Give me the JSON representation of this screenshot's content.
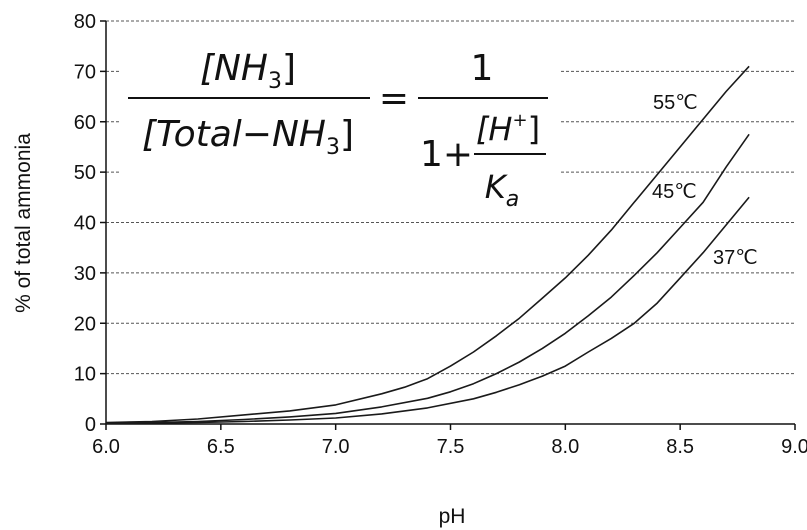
{
  "chart_data": {
    "type": "line",
    "xlabel": "pH",
    "ylabel": "% of total ammonia",
    "xlim": [
      6.0,
      9.0
    ],
    "ylim": [
      0,
      80
    ],
    "x_ticks": [
      "6.0",
      "6.5",
      "7.0",
      "7.5",
      "8.0",
      "8.5",
      "9.0"
    ],
    "y_ticks": [
      "0",
      "10",
      "20",
      "30",
      "40",
      "50",
      "60",
      "70",
      "80"
    ],
    "grid": "horizontal dashed",
    "line_color": "#1a1a1a",
    "series": [
      {
        "name": "55℃",
        "x": [
          6.0,
          6.2,
          6.4,
          6.6,
          6.8,
          7.0,
          7.2,
          7.3,
          7.4,
          7.5,
          7.6,
          7.7,
          7.8,
          7.9,
          8.0,
          8.1,
          8.2,
          8.3,
          8.4,
          8.5,
          8.6,
          8.7,
          8.8
        ],
        "y": [
          0.3,
          0.5,
          1.0,
          1.8,
          2.6,
          3.8,
          6.0,
          7.3,
          9.0,
          11.5,
          14.3,
          17.5,
          21.0,
          25.0,
          29.0,
          33.5,
          38.5,
          44.0,
          49.5,
          55.0,
          60.5,
          66.0,
          71.0
        ]
      },
      {
        "name": "45℃",
        "x": [
          6.0,
          6.2,
          6.4,
          6.6,
          6.8,
          7.0,
          7.2,
          7.4,
          7.5,
          7.6,
          7.7,
          7.8,
          7.9,
          8.0,
          8.1,
          8.2,
          8.3,
          8.4,
          8.5,
          8.6,
          8.7,
          8.8
        ],
        "y": [
          0.2,
          0.3,
          0.5,
          0.9,
          1.4,
          2.1,
          3.4,
          5.1,
          6.4,
          8.0,
          10.0,
          12.3,
          15.0,
          18.0,
          21.5,
          25.2,
          29.5,
          34.0,
          39.0,
          44.0,
          51.0,
          57.5
        ]
      },
      {
        "name": "37℃",
        "x": [
          6.0,
          6.2,
          6.4,
          6.6,
          6.8,
          7.0,
          7.2,
          7.4,
          7.6,
          7.7,
          7.8,
          7.9,
          8.0,
          8.1,
          8.2,
          8.3,
          8.4,
          8.5,
          8.6,
          8.7,
          8.8
        ],
        "y": [
          0.1,
          0.2,
          0.3,
          0.5,
          0.8,
          1.2,
          2.0,
          3.2,
          5.0,
          6.3,
          7.8,
          9.5,
          11.5,
          14.3,
          17.0,
          20.0,
          24.0,
          29.0,
          34.0,
          39.5,
          45.0
        ]
      }
    ],
    "equation": {
      "num_left": "[NH",
      "sub": "3",
      "close": "]",
      "den_left": "[Total",
      "minus": "−",
      "den_nh": "NH",
      "equals": "=",
      "one": "1",
      "one_plus": "1+",
      "h_ion": "[H",
      "plus_sup": "+",
      "k": "K",
      "a_sub": "a"
    }
  }
}
